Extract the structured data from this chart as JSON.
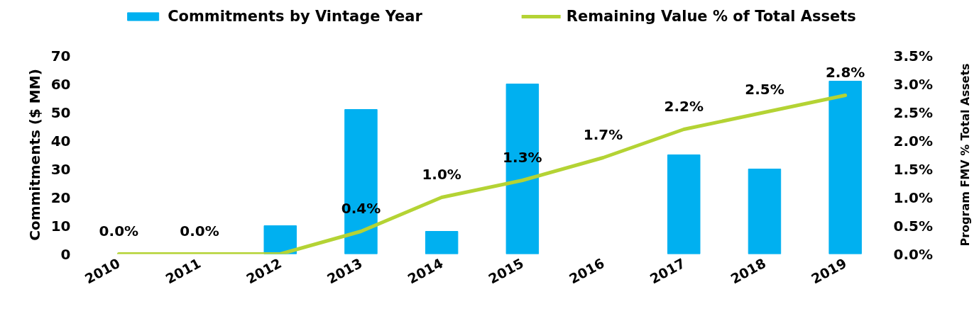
{
  "chart_data": {
    "type": "bar",
    "categories": [
      "2010",
      "2011",
      "2012",
      "2013",
      "2014",
      "2015",
      "2016",
      "2017",
      "2018",
      "2019"
    ],
    "series": [
      {
        "name": "Commitments by Vintage Year",
        "type": "bar",
        "color": "#00b0f0",
        "values": [
          null,
          null,
          10,
          51,
          8,
          60,
          null,
          35,
          30,
          61
        ]
      },
      {
        "name": "Remaining Value % of Total Assets",
        "type": "line",
        "axis": "y2",
        "color": "#b4d334",
        "values": [
          0.0,
          0.0,
          0.0,
          0.4,
          1.0,
          1.3,
          1.7,
          2.2,
          2.5,
          2.8
        ],
        "value_labels": [
          "0.0%",
          "0.0%",
          null,
          "0.4%",
          "1.0%",
          "1.3%",
          "1.7%",
          "2.2%",
          "2.5%",
          "2.8%"
        ]
      }
    ],
    "ylabel": "Commitments ($ MM)",
    "y2label": "Program FMV % Total Assets",
    "ylim": [
      0,
      70
    ],
    "yticks": [
      0,
      10,
      20,
      30,
      40,
      50,
      60,
      70
    ],
    "y2lim": [
      0,
      3.5
    ],
    "y2ticks": [
      {
        "value": 0,
        "label": "0.0%"
      },
      {
        "value": 0.5,
        "label": "0.5%"
      },
      {
        "value": 1,
        "label": "1.0%"
      },
      {
        "value": 1.5,
        "label": "1.5%"
      },
      {
        "value": 2,
        "label": "2.0%"
      },
      {
        "value": 2.5,
        "label": "2.5%"
      },
      {
        "value": 3,
        "label": "3.0%"
      },
      {
        "value": 3.5,
        "label": "3.5%"
      }
    ],
    "legend": "top"
  }
}
